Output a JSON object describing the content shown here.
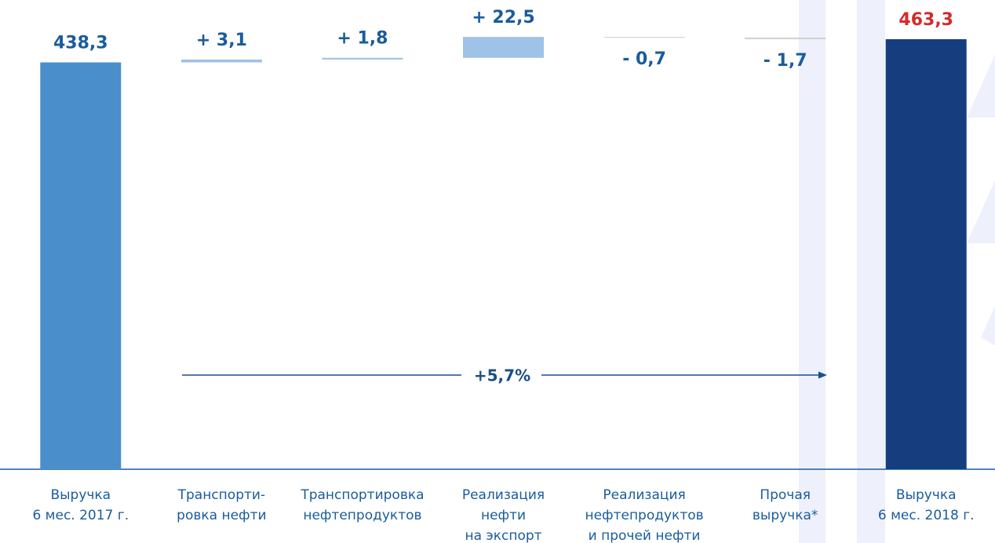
{
  "chart_data": {
    "type": "waterfall",
    "categories": [
      "Выручка\n6 мес. 2017 г.",
      "Транспорти-\nровка нефти",
      "Транспортировка\nнефтепродуктов",
      "Реализация\nнефти\nна экспорт",
      "Реализация\nнефтепродуктов\nи прочей нефти",
      "Прочая\nвыручка*",
      "Выручка\n6 мес. 2018 г."
    ],
    "values": [
      438.3,
      3.1,
      1.8,
      22.5,
      -0.7,
      -1.7,
      463.3
    ],
    "value_labels": [
      "438,3",
      "+ 3,1",
      "+ 1,8",
      "+ 22,5",
      "- 0,7",
      "- 1,7",
      "463,3"
    ],
    "is_total": [
      true,
      false,
      false,
      false,
      false,
      false,
      true
    ],
    "colors": [
      "#4a8fcb",
      "#9fc2e7",
      "#9fc2e7",
      "#9fc2e7",
      "#d0d0d0",
      "#d0d0d0",
      "#163d7e"
    ],
    "label_colors": [
      "#1a5c9c",
      "#1a5c9c",
      "#1a5c9c",
      "#1a5c9c",
      "#1a5c9c",
      "#1a5c9c",
      "#d42a2a"
    ],
    "annotation": "+5,7%",
    "ylim": [
      0,
      470
    ]
  }
}
